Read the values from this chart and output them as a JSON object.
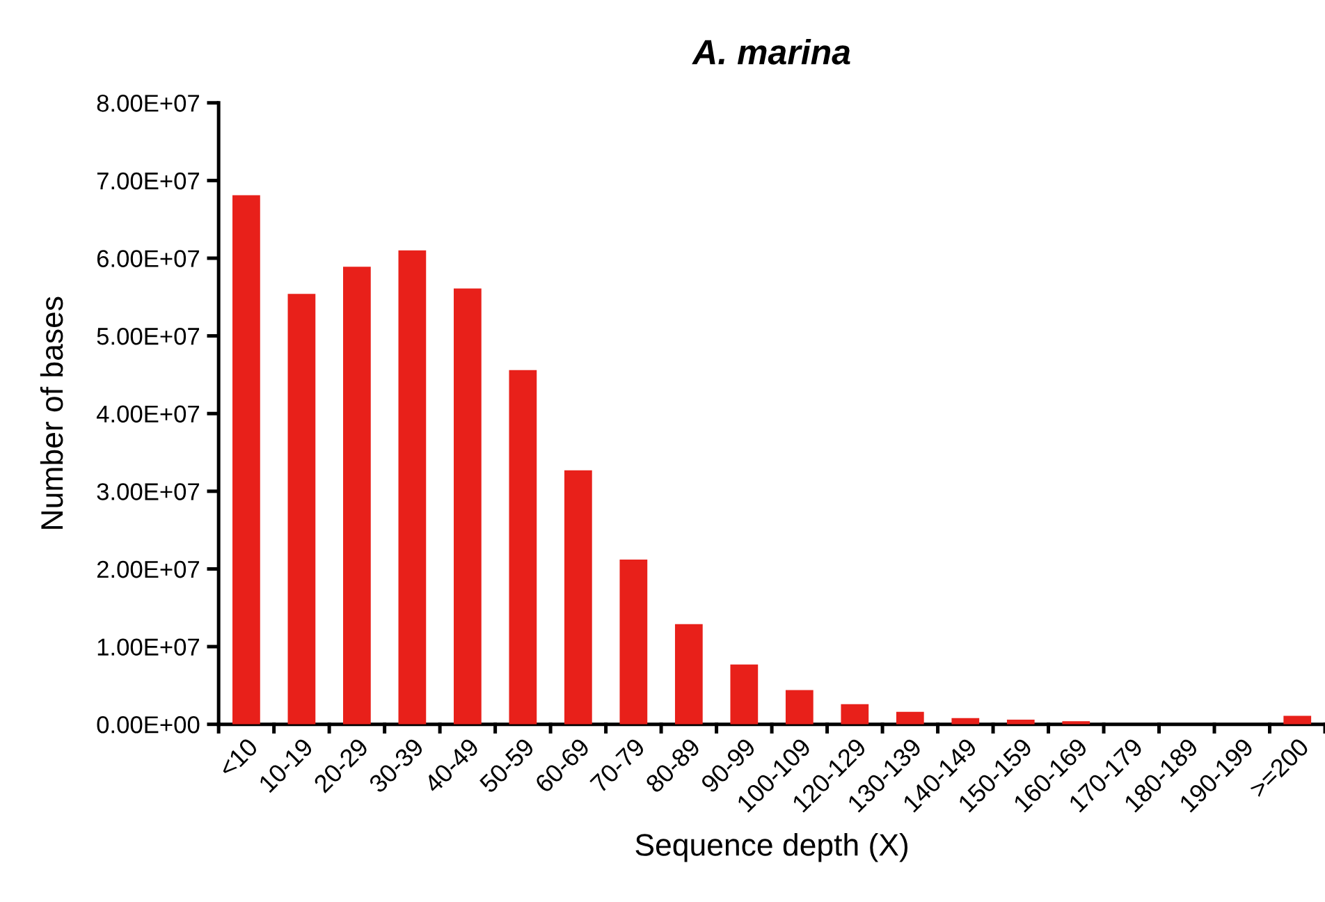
{
  "chart_data": {
    "type": "bar",
    "title": "A. marina",
    "xlabel": "Sequence depth (X)",
    "ylabel": "Number of bases",
    "categories": [
      "<10",
      "10-19",
      "20-29",
      "30-39",
      "40-49",
      "50-59",
      "60-69",
      "70-79",
      "80-89",
      "90-99",
      "100-109",
      "120-129",
      "130-139",
      "140-149",
      "150-159",
      "160-169",
      "170-179",
      "180-189",
      "190-199",
      ">=200"
    ],
    "values": [
      68100000,
      55400000,
      58900000,
      61000000,
      56100000,
      45600000,
      32700000,
      21200000,
      12900000,
      7700000,
      4400000,
      2600000,
      1600000,
      800000,
      600000,
      400000,
      0,
      0,
      0,
      1100000
    ],
    "color": "#e8201a",
    "ylim": [
      0,
      80000000
    ],
    "yticks": [
      {
        "value": 0,
        "label": "0.00E+00"
      },
      {
        "value": 10000000,
        "label": "1.00E+07"
      },
      {
        "value": 20000000,
        "label": "2.00E+07"
      },
      {
        "value": 30000000,
        "label": "3.00E+07"
      },
      {
        "value": 40000000,
        "label": "4.00E+07"
      },
      {
        "value": 50000000,
        "label": "5.00E+07"
      },
      {
        "value": 60000000,
        "label": "6.00E+07"
      },
      {
        "value": 70000000,
        "label": "7.00E+07"
      },
      {
        "value": 80000000,
        "label": "8.00E+07"
      }
    ],
    "grid": false
  }
}
